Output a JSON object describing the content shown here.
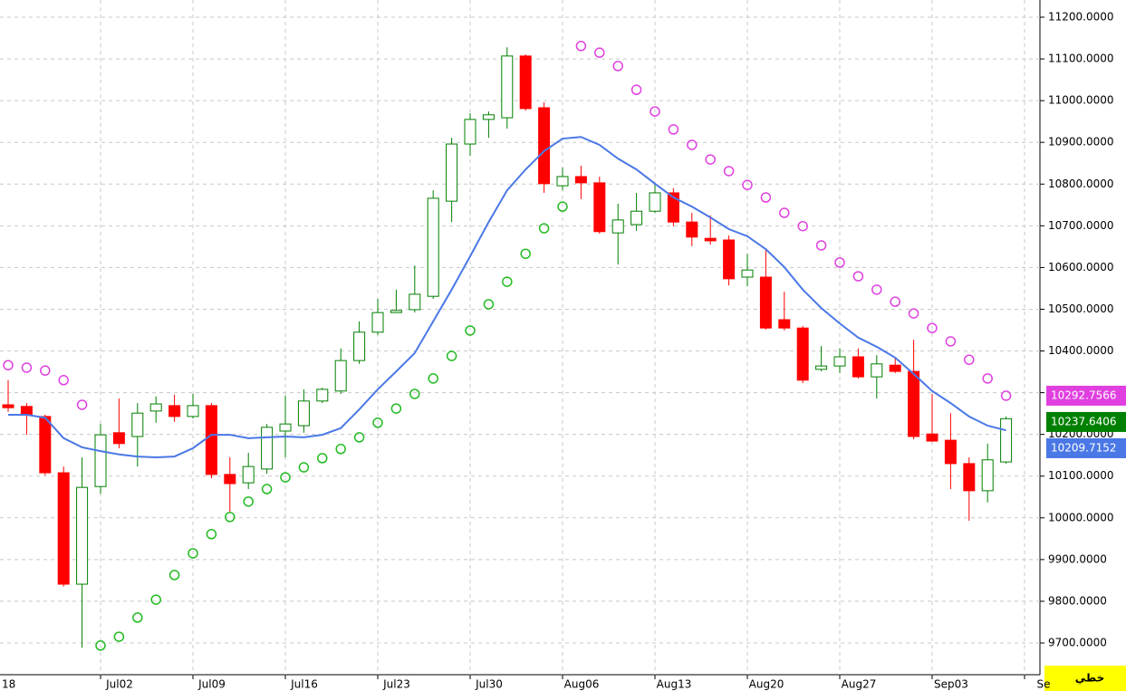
{
  "chart_data": {
    "type": "candlestick",
    "open": [
      10271,
      10267,
      10243,
      10108,
      9841,
      10075,
      10204,
      10195,
      10256,
      10269,
      10243,
      10269,
      10104,
      10084,
      10117,
      10208,
      10221,
      10280,
      10304,
      10377,
      10445,
      10492,
      10499,
      10531,
      10759,
      10896,
      10955,
      10959,
      11107,
      10983,
      10796,
      10818,
      10803,
      10683,
      10703,
      10735,
      10779,
      10709,
      10670,
      10666,
      10577,
      10577,
      10475,
      10455,
      10356,
      10364,
      10386,
      10338,
      10366,
      10351,
      10201,
      10186,
      10130,
      10065,
      10134
    ],
    "high": [
      10330,
      10275,
      10247,
      10123,
      10145,
      10225,
      10286,
      10275,
      10291,
      10295,
      10297,
      10275,
      10145,
      10156,
      10225,
      10293,
      10308,
      10312,
      10406,
      10471,
      10525,
      10547,
      10605,
      10785,
      10911,
      10970,
      10974,
      11128,
      11111,
      10996,
      10840,
      10844,
      10818,
      10753,
      10779,
      10801,
      10790,
      10731,
      10725,
      10677,
      10633,
      10644,
      10542,
      10460,
      10412,
      10406,
      10406,
      10390,
      10384,
      10427,
      10297,
      10251,
      10145,
      10178,
      10243
    ],
    "low": [
      10254,
      10199,
      10102,
      9835,
      9689,
      10058,
      10167,
      10123,
      10228,
      10230,
      10238,
      10095,
      10015,
      10069,
      10106,
      10145,
      10204,
      10275,
      10297,
      10369,
      10438,
      10492,
      10492,
      10525,
      10709,
      10868,
      10911,
      10933,
      10976,
      10779,
      10785,
      10764,
      10681,
      10607,
      10688,
      10731,
      10699,
      10651,
      10655,
      10557,
      10555,
      10451,
      10449,
      10323,
      10351,
      10347,
      10334,
      10286,
      10347,
      10188,
      10182,
      10069,
      9993,
      10037,
      10130
    ],
    "close": [
      10264,
      10247,
      10108,
      9841,
      10073,
      10199,
      10178,
      10251,
      10273,
      10243,
      10269,
      10104,
      10082,
      10123,
      10217,
      10225,
      10280,
      10308,
      10377,
      10445,
      10492,
      10497,
      10536,
      10766,
      10896,
      10955,
      10966,
      11107,
      10981,
      10801,
      10818,
      10803,
      10686,
      10714,
      10735,
      10779,
      10709,
      10673,
      10664,
      10573,
      10594,
      10455,
      10455,
      10330,
      10364,
      10386,
      10338,
      10369,
      10351,
      10195,
      10184,
      10130,
      10065,
      10139,
      10237.6406
    ],
    "ma": [
      10247,
      10247,
      10240,
      10191,
      10169,
      10160,
      10152,
      10147,
      10145,
      10147,
      10167,
      10199,
      10199,
      10191,
      10193,
      10195,
      10193,
      10199,
      10215,
      10260,
      10308,
      10351,
      10395,
      10471,
      10547,
      10627,
      10709,
      10785,
      10835,
      10879,
      10909,
      10913,
      10894,
      10861,
      10835,
      10801,
      10768,
      10746,
      10720,
      10692,
      10675,
      10644,
      10601,
      10547,
      10503,
      10466,
      10432,
      10410,
      10384,
      10345,
      10304,
      10275,
      10243,
      10221,
      10209.7152
    ],
    "sar_above": [
      10366,
      10360,
      10353,
      10330,
      10271,
      null,
      null,
      null,
      null,
      null,
      null,
      null,
      null,
      null,
      null,
      null,
      null,
      null,
      null,
      null,
      null,
      null,
      null,
      null,
      null,
      null,
      null,
      null,
      null,
      null,
      null,
      11131,
      11115,
      11083,
      11026,
      10974,
      10931,
      10894,
      10859,
      10831,
      10798,
      10768,
      10731,
      10699,
      10653,
      10612,
      10579,
      10547,
      10518,
      10490,
      10455,
      10423,
      10379,
      10334,
      10292.7566
    ],
    "sar_below": [
      null,
      null,
      null,
      null,
      null,
      9694,
      9715,
      9761,
      9804,
      9863,
      9915,
      9961,
      10002,
      10039,
      10069,
      10097,
      10121,
      10143,
      10165,
      10193,
      10228,
      10262,
      10297,
      10334,
      10388,
      10449,
      10512,
      10566,
      10633,
      10694,
      10746,
      null,
      null,
      null,
      null,
      null,
      null,
      null,
      null,
      null,
      null,
      null,
      null,
      null,
      null,
      null,
      null,
      null,
      null,
      null,
      null,
      null,
      null,
      null,
      null
    ],
    "up_color": "#008000",
    "down_color": "#ff0000",
    "ma_color": "#4a78e6",
    "sar_above_color": "#e040e0",
    "sar_below_color": "#22bb22",
    "ylim": [
      9650,
      11240
    ],
    "yticks": [
      {
        "value": 9700,
        "label": "9700.0000"
      },
      {
        "value": 9800,
        "label": "9800.0000"
      },
      {
        "value": 9900,
        "label": "9900.0000"
      },
      {
        "value": 10000,
        "label": "10000.0000"
      },
      {
        "value": 10100,
        "label": "10100.0000"
      },
      {
        "value": 10200,
        "label": "10200.0000"
      },
      {
        "value": 10300,
        "label": "10300.0000"
      },
      {
        "value": 10400,
        "label": "10400.0000"
      },
      {
        "value": 10500,
        "label": "10500.0000"
      },
      {
        "value": 10600,
        "label": "10600.0000"
      },
      {
        "value": 10700,
        "label": "10700.0000"
      },
      {
        "value": 10800,
        "label": "10800.0000"
      },
      {
        "value": 10900,
        "label": "10900.0000"
      },
      {
        "value": 11000,
        "label": "11000.0000"
      },
      {
        "value": 11100,
        "label": "11100.0000"
      },
      {
        "value": 11200,
        "label": "11200.0000"
      }
    ],
    "xticks": [
      {
        "value": -1,
        "label": "18"
      },
      {
        "value": 5,
        "label": "Jul02"
      },
      {
        "value": 10,
        "label": "Jul09"
      },
      {
        "value": 15,
        "label": "Jul16"
      },
      {
        "value": 20,
        "label": "Jul23"
      },
      {
        "value": 25,
        "label": "Jul30"
      },
      {
        "value": 30,
        "label": "Aug06"
      },
      {
        "value": 35,
        "label": "Aug13"
      },
      {
        "value": 40,
        "label": "Aug20"
      },
      {
        "value": 45,
        "label": "Aug27"
      },
      {
        "value": 50,
        "label": "Sep03"
      },
      {
        "value": 55,
        "label": "Se"
      }
    ],
    "grid": true,
    "mode_label": "خطي"
  }
}
